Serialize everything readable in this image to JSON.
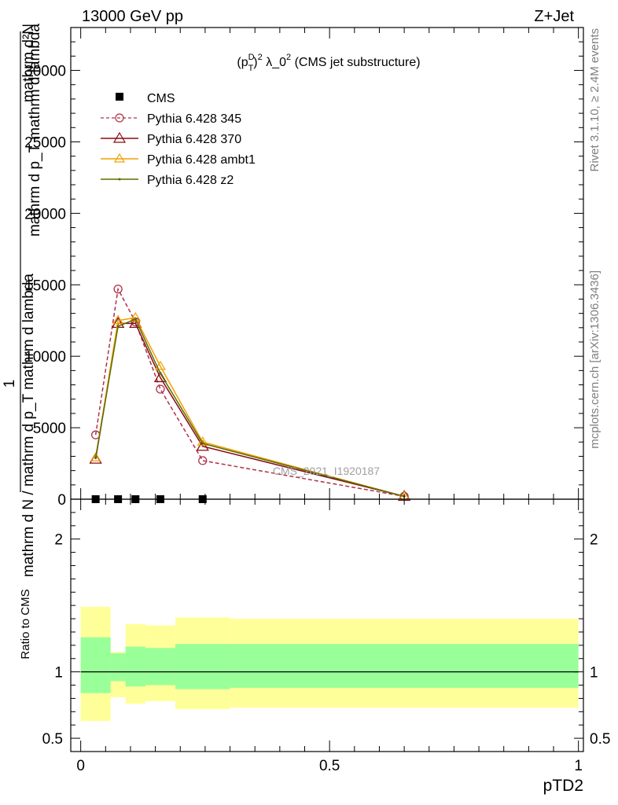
{
  "header": {
    "left_title": "13000 GeV pp",
    "right_title": "Z+Jet"
  },
  "plot_title": {
    "prefix": "(p",
    "sup": "D",
    "sub": "T",
    "sup2": "2",
    "suffix": " λ_0",
    "sup3": "2",
    "tail": " (CMS jet substructure)"
  },
  "side_labels": {
    "rivet": "Rivet 3.1.10, ≥ 2.4M events",
    "mcplots": "mcplots.cern.ch [arXiv:1306.3436]"
  },
  "watermark": "CMS_2021_I1920187",
  "ylabel_main": {
    "line1": "mathrm d²N",
    "line2": "mathrm d p_T mathrm d lambda",
    "line3": "1",
    "line4": "mathrm d N / mathrm d p_T mathrm d lambda"
  },
  "ylabel_ratio": "Ratio to CMS",
  "xlabel": "pTD2",
  "legend": [
    {
      "label": "CMS"
    },
    {
      "label": "Pythia 6.428 345"
    },
    {
      "label": "Pythia 6.428 370"
    },
    {
      "label": "Pythia 6.428 ambt1"
    },
    {
      "label": "Pythia 6.428 z2"
    }
  ],
  "colors": {
    "cms": "#000000",
    "p345": "#b03048",
    "p370": "#8b0a14",
    "ambt1": "#f0a000",
    "z2": "#5a6e00",
    "band_inner": "#99ff99",
    "band_outer": "#ffff99"
  },
  "chart_data": {
    "type": "line",
    "main": {
      "xlim": [
        -0.02,
        1.01
      ],
      "ylim": [
        0,
        33000
      ],
      "yticks": [
        {
          "value": 0,
          "label": "0"
        },
        {
          "value": 5000,
          "label": "5000"
        },
        {
          "value": 10000,
          "label": "10000"
        },
        {
          "value": 15000,
          "label": "15000"
        },
        {
          "value": 20000,
          "label": "20000"
        },
        {
          "value": 25000,
          "label": "25000"
        },
        {
          "value": 30000,
          "label": "30000"
        }
      ],
      "series": [
        {
          "name": "CMS",
          "key": "cms",
          "x": [
            0.03,
            0.075,
            0.11,
            0.16,
            0.245
          ],
          "y": [
            0,
            0,
            0,
            0,
            0
          ]
        },
        {
          "name": "Pythia 6.428 345",
          "key": "p345",
          "x": [
            0.03,
            0.075,
            0.11,
            0.16,
            0.245,
            0.65
          ],
          "y": [
            4500,
            14700,
            12400,
            7700,
            2700,
            200
          ]
        },
        {
          "name": "Pythia 6.428 370",
          "key": "p370",
          "x": [
            0.03,
            0.075,
            0.11,
            0.16,
            0.245,
            0.65
          ],
          "y": [
            2800,
            12300,
            12300,
            8500,
            3700,
            200
          ]
        },
        {
          "name": "Pythia 6.428 ambt1",
          "key": "ambt1",
          "x": [
            0.03,
            0.075,
            0.11,
            0.16,
            0.245,
            0.65
          ],
          "y": [
            2900,
            12500,
            12700,
            9300,
            4000,
            200
          ]
        },
        {
          "name": "Pythia 6.428 z2",
          "key": "z2",
          "x": [
            0.03,
            0.075,
            0.11,
            0.16,
            0.245,
            0.65
          ],
          "y": [
            2900,
            12100,
            12600,
            8800,
            3900,
            200
          ]
        }
      ]
    },
    "ratio": {
      "xlim": [
        -0.02,
        1.01
      ],
      "ylim": [
        0.4,
        2.3
      ],
      "yticks": [
        {
          "value": 0.5,
          "label": "0.5"
        },
        {
          "value": 1,
          "label": "1"
        },
        {
          "value": 2,
          "label": "2"
        }
      ],
      "bins": [
        0.0,
        0.06,
        0.09,
        0.13,
        0.19,
        0.3,
        1.0
      ],
      "inner_band": [
        [
          0.84,
          1.26
        ],
        [
          0.93,
          1.14
        ],
        [
          0.89,
          1.19
        ],
        [
          0.9,
          1.18
        ],
        [
          0.87,
          1.21
        ],
        [
          0.88,
          1.21
        ]
      ],
      "outer_band": [
        [
          0.63,
          1.49
        ],
        [
          0.81,
          1.15
        ],
        [
          0.76,
          1.36
        ],
        [
          0.78,
          1.35
        ],
        [
          0.72,
          1.41
        ],
        [
          0.73,
          1.4
        ]
      ]
    },
    "xticks": [
      {
        "value": 0,
        "label": "0"
      },
      {
        "value": 0.5,
        "label": "0.5"
      },
      {
        "value": 1,
        "label": "1"
      }
    ]
  }
}
